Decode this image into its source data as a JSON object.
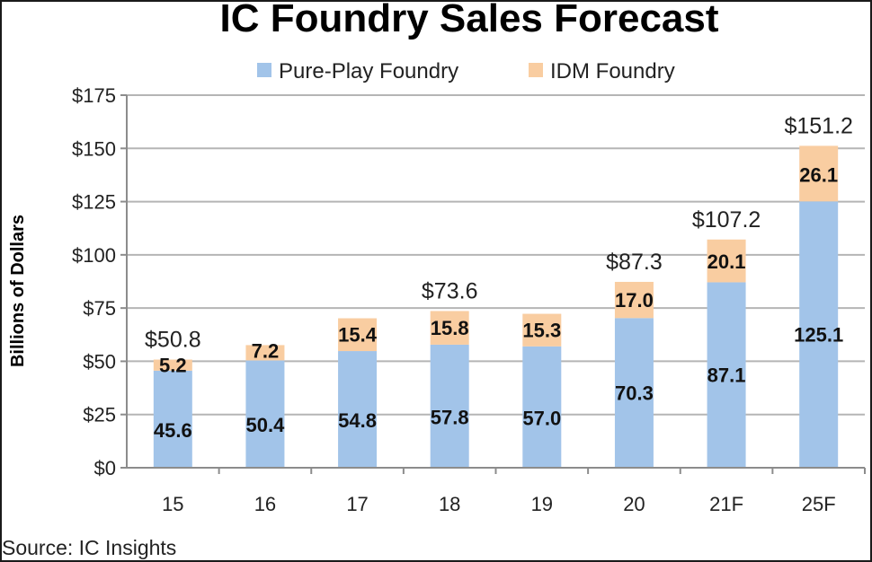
{
  "source_note": "Source:  IC Insights",
  "colors": {
    "pure_play": "#a2c4e9",
    "idm": "#f9cda1",
    "grid": "#b5b5b5",
    "axis": "#8c8c8c"
  },
  "chart_data": {
    "type": "bar",
    "stacked": true,
    "title": "IC Foundry Sales Forecast",
    "xlabel": "",
    "ylabel": "Billions of Dollars",
    "ylim": [
      0,
      175
    ],
    "yticks": [
      0,
      25,
      50,
      75,
      100,
      125,
      150,
      175
    ],
    "ytick_labels": [
      "$0",
      "$25",
      "$50",
      "$75",
      "$100",
      "$125",
      "$150",
      "$175"
    ],
    "grid": true,
    "legend_position": "top",
    "categories": [
      "15",
      "16",
      "17",
      "18",
      "19",
      "20",
      "21F",
      "25F"
    ],
    "series": [
      {
        "name": "Pure-Play Foundry",
        "color": "#a2c4e9",
        "values": [
          45.6,
          50.4,
          54.8,
          57.8,
          57.0,
          70.3,
          87.1,
          125.1
        ],
        "labels": [
          "45.6",
          "50.4",
          "54.8",
          "57.8",
          "57.0",
          "70.3",
          "87.1",
          "125.1"
        ]
      },
      {
        "name": "IDM Foundry",
        "color": "#f9cda1",
        "values": [
          5.2,
          7.2,
          15.4,
          15.8,
          15.3,
          17.0,
          20.1,
          26.1
        ],
        "labels": [
          "5.2",
          "7.2",
          "15.4",
          "15.8",
          "15.3",
          "17.0",
          "20.1",
          "26.1"
        ]
      }
    ],
    "totals": [
      {
        "category": "15",
        "value": 50.8,
        "label": "$50.8"
      },
      {
        "category": "18",
        "value": 73.6,
        "label": "$73.6"
      },
      {
        "category": "20",
        "value": 87.3,
        "label": "$87.3"
      },
      {
        "category": "21F",
        "value": 107.2,
        "label": "$107.2"
      },
      {
        "category": "25F",
        "value": 151.2,
        "label": "$151.2"
      }
    ]
  }
}
